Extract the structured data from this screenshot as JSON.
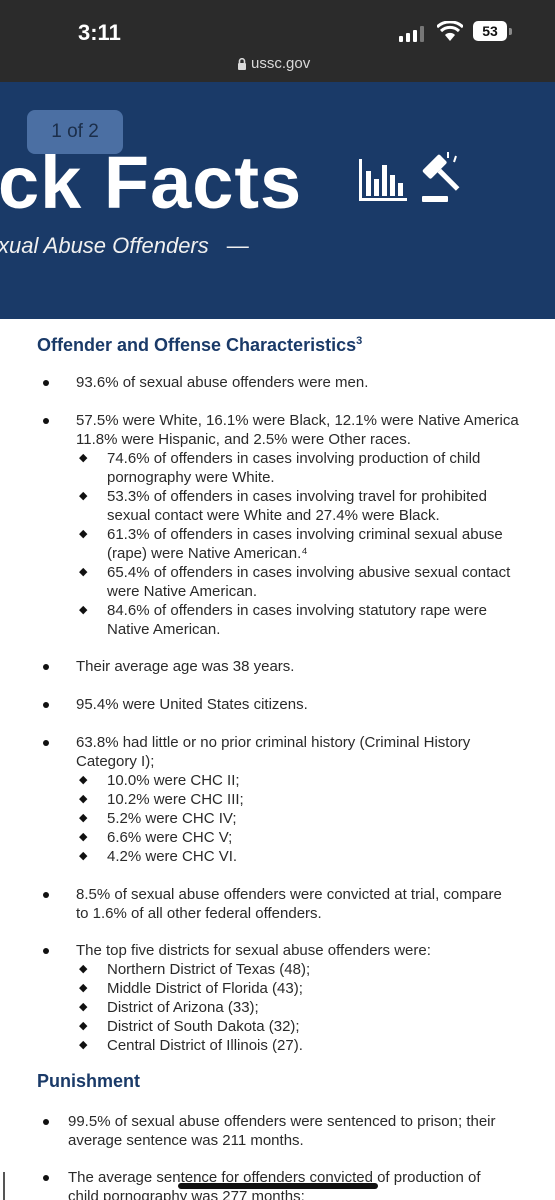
{
  "status_bar": {
    "time": "3:11",
    "battery": "53"
  },
  "browser": {
    "url": "ussc.gov"
  },
  "banner": {
    "page_indicator": "1 of 2",
    "title": "ck Facts",
    "subtitle": "xual Abuse Offenders",
    "subtitle_dash": "—"
  },
  "sections": {
    "characteristics": {
      "heading": "Offender and Offense Characteristics",
      "heading_sup": "3",
      "items": [
        {
          "text": "93.6% of sexual abuse offenders were men."
        },
        {
          "lines": [
            "57.5% were White, 16.1% were Black, 12.1% were Native America",
            "11.8% were Hispanic, and 2.5% were Other races."
          ]
        },
        {
          "sub": [
            [
              "74.6% of offenders in cases involving production of child",
              "pornography were White."
            ],
            [
              "53.3% of offenders in cases involving travel for prohibited",
              "sexual contact were White and 27.4% were Black."
            ],
            [
              "61.3% of offenders in cases involving criminal sexual abuse",
              "(rape) were Native American.⁴"
            ],
            [
              "65.4% of offenders in cases involving abusive sexual contact",
              "were Native American."
            ],
            [
              "84.6% of offenders in cases involving statutory rape were",
              "Native American."
            ]
          ]
        },
        {
          "text": "Their average age was 38 years."
        },
        {
          "text": "95.4% were United States citizens."
        },
        {
          "lines": [
            "63.8% had little or no prior criminal history (Criminal History",
            "Category I);"
          ]
        },
        {
          "chc": [
            "10.0% were CHC II;",
            "10.2% were CHC III;",
            "5.2% were CHC IV;",
            "6.6% were CHC V;",
            "4.2% were CHC VI."
          ]
        },
        {
          "lines": [
            "8.5% of sexual abuse offenders were convicted at trial, compare",
            "to 1.6% of all other federal offenders."
          ]
        },
        {
          "text": "The top five districts for sexual abuse offenders were:"
        },
        {
          "districts": [
            "Northern District of Texas (48);",
            "Middle District of Florida (43);",
            "District of Arizona (33);",
            "District of South Dakota (32);",
            "Central District of Illinois (27)."
          ]
        }
      ]
    },
    "punishment": {
      "heading": "Punishment",
      "items": [
        [
          "99.5% of sexual abuse offenders were sentenced to prison; their",
          "average sentence was 211 months."
        ],
        [
          "The average sentence for offenders convicted of production of",
          "child pornography was 277 months;"
        ]
      ]
    }
  },
  "colors": {
    "banner_bg": "#1a3a68",
    "heading": "#1a3a68",
    "page_indicator_bg": "#4b6fa3",
    "chrome_bg": "#2b2b2b"
  },
  "icons": [
    "lock-icon",
    "signal-icon",
    "wifi-icon",
    "battery-icon",
    "bar-chart-icon",
    "gavel-icon"
  ]
}
